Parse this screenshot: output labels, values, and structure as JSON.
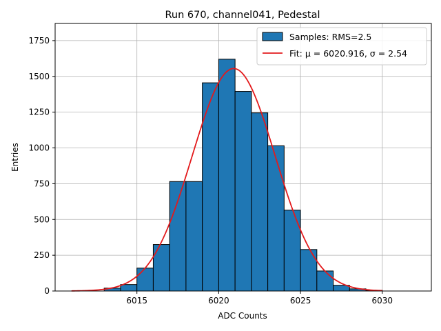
{
  "chart_data": {
    "type": "bar",
    "title": "Run 670, channel041, Pedestal",
    "xlabel": "ADC Counts",
    "ylabel": "Entries",
    "xlim": [
      6010.0,
      6033.0
    ],
    "ylim": [
      0,
      1870
    ],
    "xticks": [
      6015,
      6020,
      6025,
      6030
    ],
    "yticks": [
      0,
      250,
      500,
      750,
      1000,
      1250,
      1500,
      1750
    ],
    "grid": true,
    "legend_position": "top-right",
    "bar_color": "#1f77b4",
    "fit_color": "#e31a1c",
    "histogram": {
      "name": "Samples: RMS=2.5",
      "bins": [
        {
          "left": 6013,
          "right": 6014,
          "count": 20
        },
        {
          "left": 6014,
          "right": 6015,
          "count": 45
        },
        {
          "left": 6015,
          "right": 6016,
          "count": 160
        },
        {
          "left": 6016,
          "right": 6017,
          "count": 325
        },
        {
          "left": 6017,
          "right": 6018,
          "count": 765
        },
        {
          "left": 6018,
          "right": 6019,
          "count": 765
        },
        {
          "left": 6019,
          "right": 6020,
          "count": 1455
        },
        {
          "left": 6020,
          "right": 6021,
          "count": 1620
        },
        {
          "left": 6021,
          "right": 6022,
          "count": 1395
        },
        {
          "left": 6022,
          "right": 6023,
          "count": 1245
        },
        {
          "left": 6023,
          "right": 6024,
          "count": 1015
        },
        {
          "left": 6024,
          "right": 6025,
          "count": 565
        },
        {
          "left": 6025,
          "right": 6026,
          "count": 290
        },
        {
          "left": 6026,
          "right": 6027,
          "count": 140
        },
        {
          "left": 6027,
          "right": 6028,
          "count": 40
        },
        {
          "left": 6028,
          "right": 6029,
          "count": 15
        },
        {
          "left": 6029,
          "right": 6030,
          "count": 5
        }
      ]
    },
    "fit": {
      "name": "Fit: μ = 6020.916, σ = 2.54",
      "mu": 6020.916,
      "sigma": 2.54,
      "amplitude": 1555,
      "x_range": [
        6011,
        6030
      ]
    }
  }
}
